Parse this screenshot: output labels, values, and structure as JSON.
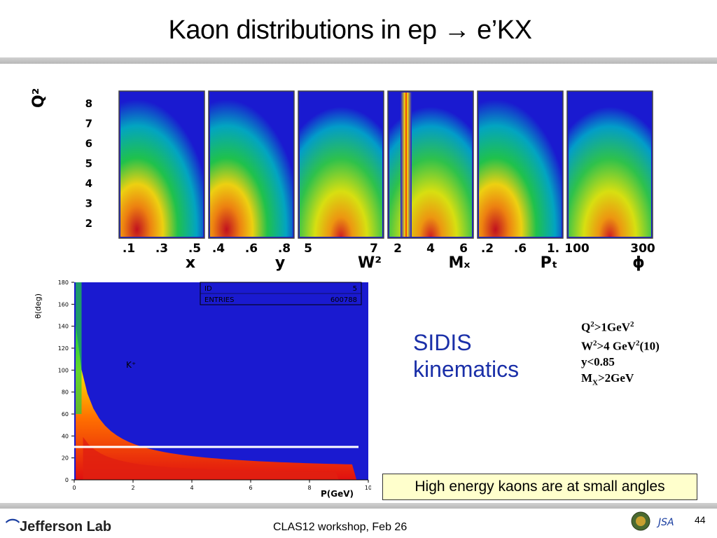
{
  "title": "Kaon distributions in ep → e’KX",
  "footer": {
    "text": "CLAS12 workshop,  Feb 26",
    "page": "44",
    "logo_text": "Jefferson Lab",
    "jsa_text": "JSA"
  },
  "sidis_label": [
    "SIDIS",
    "kinematics"
  ],
  "cuts": [
    {
      "main": "Q",
      "sup": "2",
      "rest": ">1GeV",
      "sup2": "2"
    },
    {
      "main": "W",
      "sup": "2",
      "rest": ">4 GeV",
      "sup2": "2",
      "tail": "(10)"
    },
    {
      "main": "y<0.85"
    },
    {
      "main": "M",
      "sub": "X",
      "rest": ">2GeV"
    }
  ],
  "note": "High energy kaons are at small angles",
  "colors": {
    "plot_blue": "#1a1ad0",
    "title_blue": "#1a2fa8",
    "note_bg": "#ffffcc"
  },
  "chart_data": [
    {
      "type": "heatmap",
      "ylabel": "Q²",
      "y_ticks": [
        "8",
        "7",
        "6",
        "5",
        "4",
        "3",
        "2"
      ],
      "panels": [
        {
          "xlabel": "x",
          "x_ticks": [
            ".1",
            ".3",
            ".5"
          ]
        },
        {
          "xlabel": "y",
          "x_ticks": [
            ".4",
            ".6",
            ".8"
          ]
        },
        {
          "xlabel": "W²",
          "x_ticks": [
            "5",
            "7"
          ]
        },
        {
          "xlabel": "Mₓ",
          "x_ticks": [
            "2",
            "4",
            "6"
          ]
        },
        {
          "xlabel": "Pₜ",
          "x_ticks": [
            ".2",
            ".6",
            "1."
          ]
        },
        {
          "xlabel": "ϕ",
          "x_ticks": [
            "100",
            "300"
          ]
        }
      ]
    },
    {
      "type": "heatmap",
      "ylabel": "θ(deg)",
      "xlabel": "P(GeV)",
      "y_ticks": [
        "0",
        "20",
        "40",
        "60",
        "80",
        "100",
        "120",
        "140",
        "160",
        "180"
      ],
      "x_ticks": [
        "0",
        "2",
        "4",
        "6",
        "8",
        "10"
      ],
      "ylim": [
        0,
        180
      ],
      "xlim": [
        0,
        10
      ],
      "annotation": "K⁺",
      "cut_line_theta": 30,
      "stats": {
        "id_label": "ID",
        "id_value": "5",
        "entries_label": "ENTRIES",
        "entries_value": "600788"
      }
    }
  ]
}
